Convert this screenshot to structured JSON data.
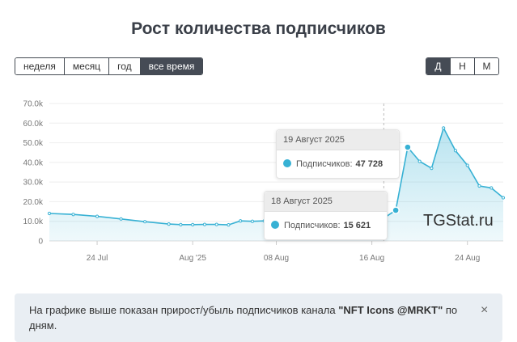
{
  "header": {
    "title": "Рост количества подписчиков"
  },
  "range_tabs": [
    {
      "label": "неделя",
      "active": false
    },
    {
      "label": "месяц",
      "active": false
    },
    {
      "label": "год",
      "active": false
    },
    {
      "label": "все время",
      "active": true
    }
  ],
  "group_tabs": [
    {
      "label": "Д",
      "active": true
    },
    {
      "label": "Н",
      "active": false
    },
    {
      "label": "М",
      "active": false
    }
  ],
  "chart_data": {
    "type": "area",
    "x_tick_labels": [
      "24 Jul",
      "Aug '25",
      "08 Aug",
      "16 Aug",
      "24 Aug"
    ],
    "y_tick_labels": [
      "0",
      "10.0k",
      "20.0k",
      "30.0k",
      "40.0k",
      "50.0k",
      "60.0k",
      "70.0k"
    ],
    "ylim": [
      0,
      70000
    ],
    "x_start": "2025-07-20",
    "x_end": "2025-08-27",
    "series": [
      {
        "color": "#37b1d4",
        "points": [
          [
            "2025-07-20",
            14000
          ],
          [
            "2025-07-22",
            13500
          ],
          [
            "2025-07-24",
            12500
          ],
          [
            "2025-07-26",
            11200
          ],
          [
            "2025-07-28",
            9800
          ],
          [
            "2025-07-30",
            8600
          ],
          [
            "2025-07-31",
            8300
          ],
          [
            "2025-08-01",
            8300
          ],
          [
            "2025-08-02",
            8400
          ],
          [
            "2025-08-03",
            8400
          ],
          [
            "2025-08-04",
            8200
          ],
          [
            "2025-08-05",
            10200
          ],
          [
            "2025-08-06",
            10000
          ],
          [
            "2025-08-07",
            10200
          ],
          [
            "2025-08-08",
            10300
          ],
          [
            "2025-08-09",
            10300
          ],
          [
            "2025-08-10",
            10800
          ],
          [
            "2025-08-11",
            11300
          ],
          [
            "2025-08-12",
            11000
          ],
          [
            "2025-08-13",
            10800
          ],
          [
            "2025-08-14",
            10900
          ],
          [
            "2025-08-15",
            10600
          ],
          [
            "2025-08-16",
            10300
          ],
          [
            "2025-08-17",
            11600
          ],
          [
            "2025-08-18",
            15621
          ],
          [
            "2025-08-19",
            47728
          ],
          [
            "2025-08-20",
            40500
          ],
          [
            "2025-08-21",
            37000
          ],
          [
            "2025-08-22",
            57500
          ],
          [
            "2025-08-23",
            46000
          ],
          [
            "2025-08-24",
            38500
          ],
          [
            "2025-08-25",
            28000
          ],
          [
            "2025-08-26",
            27000
          ],
          [
            "2025-08-27",
            22000
          ]
        ]
      }
    ],
    "hover_date": "2025-08-17",
    "grid": true,
    "legend": "none"
  },
  "tooltips": [
    {
      "date": "19 Август 2025",
      "label": "Подписчиков:",
      "value": "47 728"
    },
    {
      "date": "18 Август 2025",
      "label": "Подписчиков:",
      "value": "15 621"
    }
  ],
  "watermark": "TGStat.ru",
  "info": {
    "text_before": "На графике выше показан прирост/убыль подписчиков канала ",
    "channel": "\"NFT Icons @MRKT\"",
    "text_after": " по дням.",
    "close_glyph": "×"
  }
}
